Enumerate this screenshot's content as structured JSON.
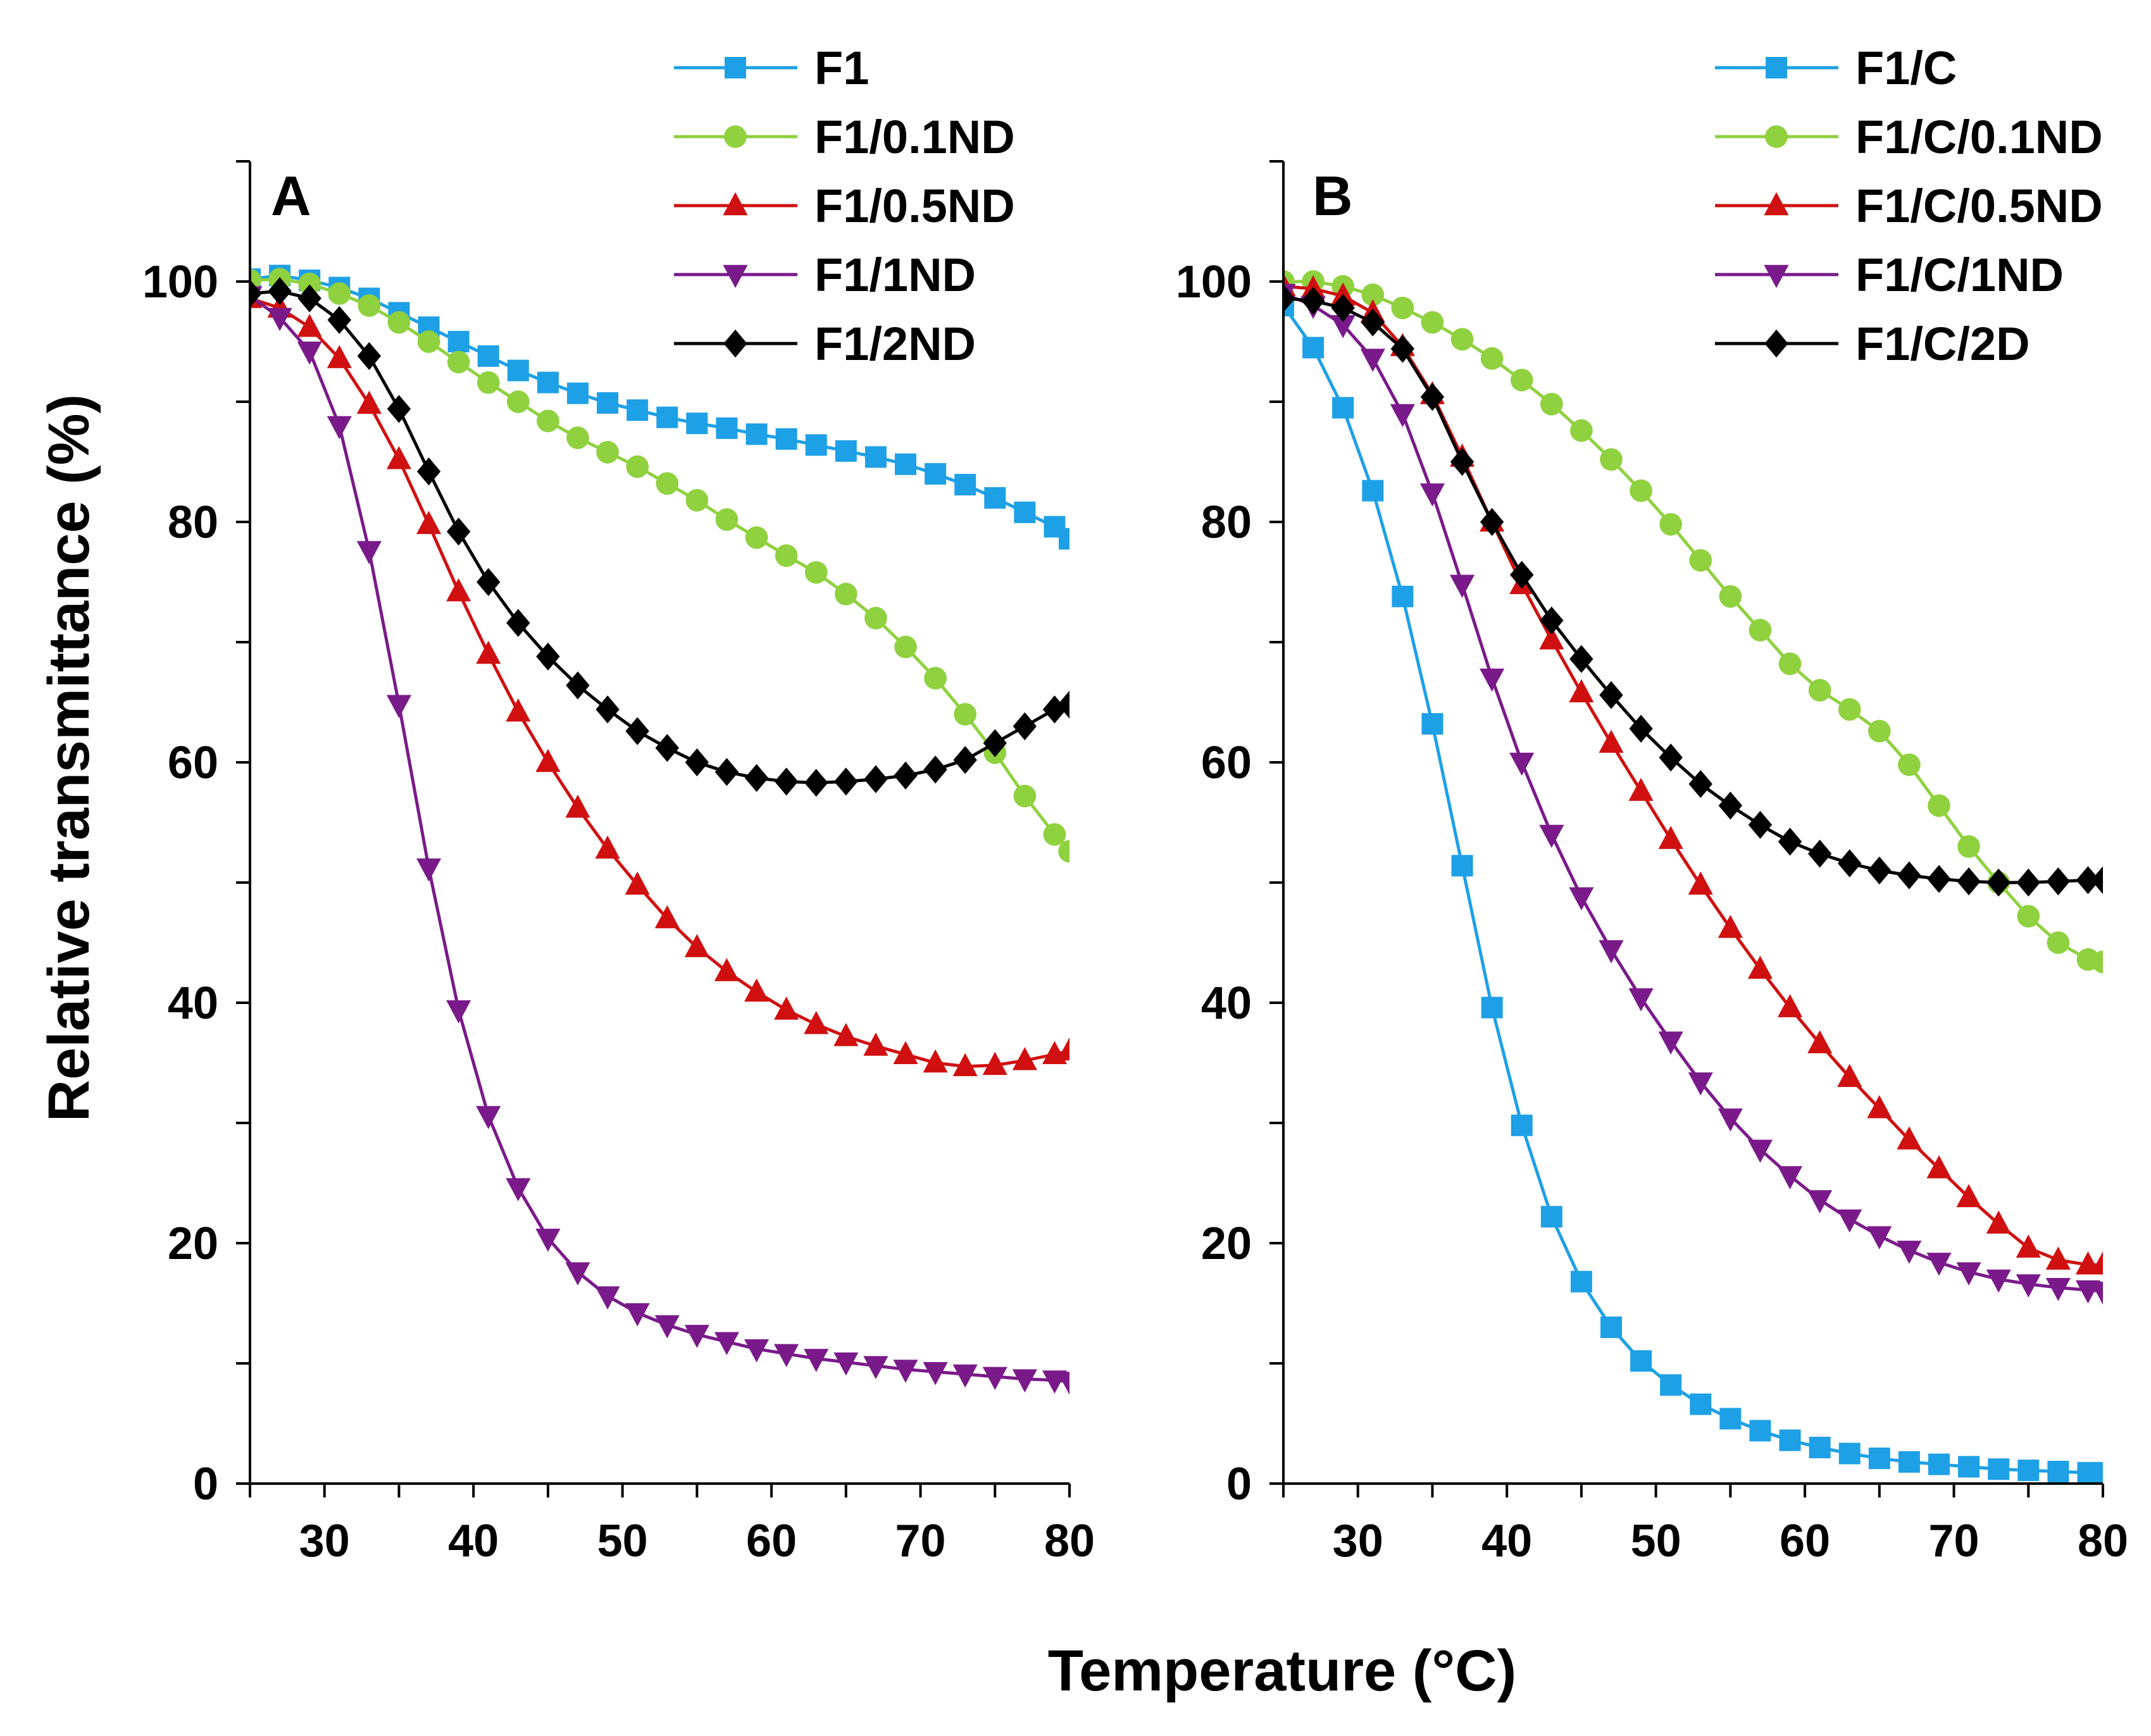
{
  "figure": {
    "ylabel": "Relative transmittance (%)",
    "xlabel": "Temperature (°C)"
  },
  "chart_data": [
    {
      "type": "line",
      "panel": "A",
      "xlim": [
        25,
        80
      ],
      "ylim": [
        0,
        110
      ],
      "xticks": [
        30,
        40,
        50,
        60,
        70,
        80
      ],
      "yticks": [
        0,
        20,
        40,
        60,
        80,
        100
      ],
      "legend_position": "top",
      "series": [
        {
          "name": "F1",
          "color": "#1ea0e6",
          "marker": "square",
          "x": [
            25,
            27,
            29,
            31,
            33,
            35,
            37,
            39,
            41,
            43,
            45,
            47,
            49,
            51,
            53,
            55,
            57,
            59,
            61,
            63,
            65,
            67,
            69,
            71,
            73,
            75,
            77,
            79,
            80
          ],
          "y": [
            100.2,
            100.5,
            100.1,
            99.5,
            98.6,
            97.4,
            96.2,
            95.0,
            93.8,
            92.6,
            91.6,
            90.7,
            89.9,
            89.3,
            88.7,
            88.2,
            87.8,
            87.3,
            86.9,
            86.4,
            85.9,
            85.4,
            84.8,
            84.0,
            83.1,
            82.0,
            80.8,
            79.6,
            78.6
          ]
        },
        {
          "name": "F1/0.1ND",
          "color": "#8fd13f",
          "marker": "circle",
          "x": [
            25,
            27,
            29,
            31,
            33,
            35,
            37,
            39,
            41,
            43,
            45,
            47,
            49,
            51,
            53,
            55,
            57,
            59,
            61,
            63,
            65,
            67,
            69,
            71,
            73,
            75,
            77,
            79,
            80
          ],
          "y": [
            100.1,
            100.2,
            99.8,
            99.0,
            98.0,
            96.6,
            95.0,
            93.3,
            91.6,
            90.0,
            88.4,
            87.0,
            85.8,
            84.6,
            83.2,
            81.8,
            80.2,
            78.7,
            77.2,
            75.8,
            74.0,
            72.0,
            69.6,
            67.0,
            64.0,
            60.8,
            57.2,
            54.0,
            52.6
          ]
        },
        {
          "name": "F1/0.5ND",
          "color": "#d01010",
          "marker": "triangle-up",
          "x": [
            25,
            27,
            29,
            31,
            33,
            35,
            37,
            39,
            41,
            43,
            45,
            47,
            49,
            51,
            53,
            55,
            57,
            59,
            61,
            63,
            65,
            67,
            69,
            71,
            73,
            75,
            77,
            79,
            80
          ],
          "y": [
            98.6,
            97.8,
            96.2,
            93.6,
            89.8,
            85.2,
            79.8,
            74.2,
            69.0,
            64.2,
            60.0,
            56.2,
            52.8,
            49.8,
            47.0,
            44.6,
            42.6,
            40.9,
            39.4,
            38.2,
            37.2,
            36.4,
            35.7,
            35.0,
            34.7,
            34.8,
            35.2,
            35.7,
            36.0
          ]
        },
        {
          "name": "F1/1ND",
          "color": "#7a1a8a",
          "marker": "triangle-down",
          "x": [
            25,
            27,
            29,
            31,
            33,
            35,
            37,
            39,
            41,
            43,
            45,
            47,
            49,
            51,
            53,
            55,
            57,
            59,
            61,
            63,
            65,
            67,
            69,
            71,
            73,
            75,
            77,
            79,
            80
          ],
          "y": [
            98.8,
            97.0,
            94.2,
            88.0,
            77.6,
            64.8,
            51.2,
            39.4,
            30.6,
            24.6,
            20.4,
            17.6,
            15.6,
            14.2,
            13.2,
            12.4,
            11.8,
            11.2,
            10.8,
            10.4,
            10.1,
            9.8,
            9.5,
            9.3,
            9.1,
            8.9,
            8.7,
            8.6,
            8.5
          ]
        },
        {
          "name": "F1/2ND",
          "color": "#000000",
          "marker": "diamond",
          "x": [
            25,
            27,
            29,
            31,
            33,
            35,
            37,
            39,
            41,
            43,
            45,
            47,
            49,
            51,
            53,
            55,
            57,
            59,
            61,
            63,
            65,
            67,
            69,
            71,
            73,
            75,
            77,
            79,
            80
          ],
          "y": [
            99.0,
            99.2,
            98.6,
            96.8,
            93.8,
            89.4,
            84.2,
            79.2,
            75.0,
            71.6,
            68.8,
            66.4,
            64.4,
            62.6,
            61.2,
            60.0,
            59.2,
            58.7,
            58.4,
            58.3,
            58.4,
            58.6,
            58.9,
            59.4,
            60.2,
            61.6,
            63.0,
            64.4,
            64.8
          ]
        }
      ]
    },
    {
      "type": "line",
      "panel": "B",
      "xlim": [
        25,
        80
      ],
      "ylim": [
        0,
        110
      ],
      "xticks": [
        30,
        40,
        50,
        60,
        70,
        80
      ],
      "yticks": [
        0,
        20,
        40,
        60,
        80,
        100
      ],
      "legend_position": "top",
      "series": [
        {
          "name": "F1/C",
          "color": "#1ea0e6",
          "marker": "square",
          "x": [
            25,
            27,
            29,
            31,
            33,
            35,
            37,
            39,
            41,
            43,
            45,
            47,
            49,
            51,
            53,
            55,
            57,
            59,
            61,
            63,
            65,
            67,
            69,
            71,
            73,
            75,
            77,
            79,
            80
          ],
          "y": [
            98.0,
            94.5,
            89.5,
            82.6,
            73.8,
            63.2,
            51.4,
            39.6,
            29.8,
            22.2,
            16.8,
            13.0,
            10.2,
            8.2,
            6.6,
            5.4,
            4.4,
            3.6,
            3.0,
            2.5,
            2.1,
            1.8,
            1.6,
            1.4,
            1.2,
            1.1,
            1.0,
            0.9,
            0.9
          ]
        },
        {
          "name": "F1/C/0.1ND",
          "color": "#8fd13f",
          "marker": "circle",
          "x": [
            25,
            27,
            29,
            31,
            33,
            35,
            37,
            39,
            41,
            43,
            45,
            47,
            49,
            51,
            53,
            55,
            57,
            59,
            61,
            63,
            65,
            67,
            69,
            71,
            73,
            75,
            77,
            79,
            80
          ],
          "y": [
            100.0,
            100.0,
            99.6,
            98.9,
            97.8,
            96.6,
            95.2,
            93.6,
            91.8,
            89.8,
            87.6,
            85.2,
            82.6,
            79.8,
            76.8,
            73.8,
            71.0,
            68.2,
            66.0,
            64.4,
            62.6,
            59.8,
            56.4,
            53.0,
            50.0,
            47.2,
            45.0,
            43.6,
            43.4
          ]
        },
        {
          "name": "F1/C/0.5ND",
          "color": "#d01010",
          "marker": "triangle-up",
          "x": [
            25,
            27,
            29,
            31,
            33,
            35,
            37,
            39,
            41,
            43,
            45,
            47,
            49,
            51,
            53,
            55,
            57,
            59,
            61,
            63,
            65,
            67,
            69,
            71,
            73,
            75,
            77,
            79,
            80
          ],
          "y": [
            99.6,
            99.4,
            98.8,
            97.4,
            94.6,
            90.6,
            85.4,
            80.0,
            74.8,
            70.2,
            65.8,
            61.6,
            57.6,
            53.6,
            49.8,
            46.2,
            42.8,
            39.6,
            36.6,
            33.8,
            31.2,
            28.6,
            26.2,
            23.8,
            21.6,
            19.6,
            18.6,
            18.2,
            18.2
          ]
        },
        {
          "name": "F1/C/1ND",
          "color": "#7a1a8a",
          "marker": "triangle-down",
          "x": [
            25,
            27,
            29,
            31,
            33,
            35,
            37,
            39,
            41,
            43,
            45,
            47,
            49,
            51,
            53,
            55,
            57,
            59,
            61,
            63,
            65,
            67,
            69,
            71,
            73,
            75,
            77,
            79,
            80
          ],
          "y": [
            99.0,
            98.0,
            96.4,
            93.6,
            89.0,
            82.4,
            74.8,
            67.0,
            60.0,
            54.0,
            48.8,
            44.4,
            40.4,
            36.8,
            33.4,
            30.4,
            27.8,
            25.6,
            23.6,
            22.0,
            20.6,
            19.4,
            18.4,
            17.6,
            17.0,
            16.6,
            16.3,
            16.1,
            16.0
          ]
        },
        {
          "name": "F1/C/2D",
          "color": "#000000",
          "marker": "diamond",
          "x": [
            25,
            27,
            29,
            31,
            33,
            35,
            37,
            39,
            41,
            43,
            45,
            47,
            49,
            51,
            53,
            55,
            57,
            59,
            61,
            63,
            65,
            67,
            69,
            71,
            73,
            75,
            77,
            79,
            80
          ],
          "y": [
            98.6,
            98.4,
            97.8,
            96.6,
            94.4,
            90.4,
            85.0,
            80.0,
            75.6,
            71.8,
            68.6,
            65.6,
            62.8,
            60.4,
            58.2,
            56.4,
            54.8,
            53.4,
            52.4,
            51.6,
            51.0,
            50.6,
            50.3,
            50.1,
            50.0,
            50.0,
            50.1,
            50.2,
            50.2
          ]
        }
      ]
    }
  ]
}
